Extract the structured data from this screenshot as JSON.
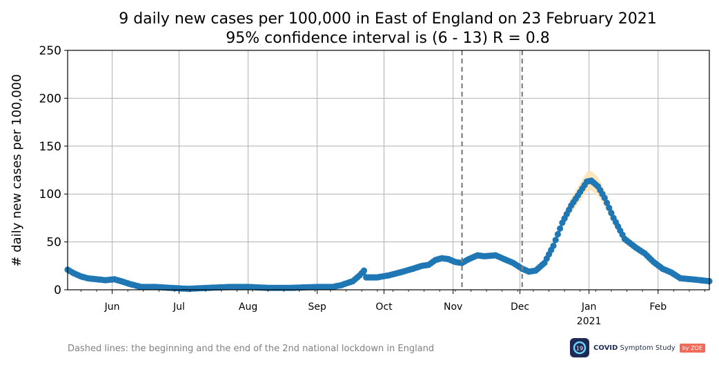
{
  "chart_data": {
    "type": "line",
    "title_line1": "9 daily new cases per 100,000 in East of England on 23 February 2021",
    "title_line2": "95% confidence interval is (6 - 13) R = 0.8",
    "ylabel": "# daily new cases per 100,000",
    "ylim": [
      0,
      250
    ],
    "yticks": [
      0,
      50,
      100,
      150,
      200,
      250
    ],
    "xlim": [
      "2020-05-12",
      "2021-02-24"
    ],
    "x_ticks": [
      {
        "date": "2020-06-01",
        "label": "Jun"
      },
      {
        "date": "2020-07-01",
        "label": "Jul"
      },
      {
        "date": "2020-08-01",
        "label": "Aug"
      },
      {
        "date": "2020-09-01",
        "label": "Sep"
      },
      {
        "date": "2020-10-01",
        "label": "Oct"
      },
      {
        "date": "2020-11-01",
        "label": "Nov"
      },
      {
        "date": "2020-12-01",
        "label": "Dec"
      },
      {
        "date": "2021-01-01",
        "label": "Jan"
      },
      {
        "date": "2021-02-01",
        "label": "Feb"
      }
    ],
    "year_label": {
      "date": "2021-01-01",
      "label": "2021"
    },
    "grid": true,
    "lockdown_lines": [
      "2020-11-05",
      "2020-12-02"
    ],
    "series": [
      {
        "color": "#1f77b4",
        "ci_color": "#fde3b5",
        "points": [
          [
            "2020-05-12",
            21
          ],
          [
            "2020-05-15",
            17
          ],
          [
            "2020-05-18",
            14
          ],
          [
            "2020-05-21",
            12
          ],
          [
            "2020-05-25",
            11
          ],
          [
            "2020-05-29",
            10
          ],
          [
            "2020-06-02",
            11
          ],
          [
            "2020-06-05",
            9
          ],
          [
            "2020-06-09",
            6
          ],
          [
            "2020-06-14",
            3
          ],
          [
            "2020-06-20",
            3
          ],
          [
            "2020-06-27",
            2
          ],
          [
            "2020-07-05",
            1
          ],
          [
            "2020-07-14",
            2
          ],
          [
            "2020-07-24",
            3
          ],
          [
            "2020-08-01",
            3
          ],
          [
            "2020-08-10",
            2
          ],
          [
            "2020-08-20",
            2
          ],
          [
            "2020-09-01",
            3
          ],
          [
            "2020-09-08",
            3
          ],
          [
            "2020-09-12",
            5
          ],
          [
            "2020-09-17",
            9
          ],
          [
            "2020-09-20",
            15
          ],
          [
            "2020-09-22",
            20
          ],
          [
            "2020-09-23",
            13
          ],
          [
            "2020-09-28",
            13
          ],
          [
            "2020-10-03",
            15
          ],
          [
            "2020-10-08",
            18
          ],
          [
            "2020-10-14",
            22
          ],
          [
            "2020-10-18",
            25
          ],
          [
            "2020-10-21",
            26
          ],
          [
            "2020-10-24",
            31
          ],
          [
            "2020-10-27",
            33
          ],
          [
            "2020-10-30",
            32
          ],
          [
            "2020-11-02",
            29
          ],
          [
            "2020-11-05",
            28
          ],
          [
            "2020-11-08",
            32
          ],
          [
            "2020-11-12",
            36
          ],
          [
            "2020-11-15",
            35
          ],
          [
            "2020-11-20",
            36
          ],
          [
            "2020-11-24",
            32
          ],
          [
            "2020-11-28",
            28
          ],
          [
            "2020-12-02",
            22
          ],
          [
            "2020-12-05",
            19
          ],
          [
            "2020-12-08",
            20
          ],
          [
            "2020-12-12",
            28
          ],
          [
            "2020-12-16",
            46
          ],
          [
            "2020-12-20",
            70
          ],
          [
            "2020-12-24",
            88
          ],
          [
            "2020-12-28",
            102
          ],
          [
            "2020-12-31",
            113
          ],
          [
            "2021-01-02",
            114
          ],
          [
            "2021-01-05",
            108
          ],
          [
            "2021-01-08",
            96
          ],
          [
            "2021-01-12",
            75
          ],
          [
            "2021-01-17",
            53
          ],
          [
            "2021-01-22",
            44
          ],
          [
            "2021-01-26",
            38
          ],
          [
            "2021-01-30",
            29
          ],
          [
            "2021-02-03",
            22
          ],
          [
            "2021-02-07",
            18
          ],
          [
            "2021-02-11",
            12
          ],
          [
            "2021-02-16",
            11
          ],
          [
            "2021-02-20",
            10
          ],
          [
            "2021-02-24",
            9
          ]
        ]
      }
    ]
  },
  "footnote": "Dashed lines: the beginning and the end of the 2nd national lockdown in England",
  "logo": {
    "text_bold": "COVID",
    "text": " Symptom Study",
    "badge": "by ZOE",
    "mark": "19"
  }
}
